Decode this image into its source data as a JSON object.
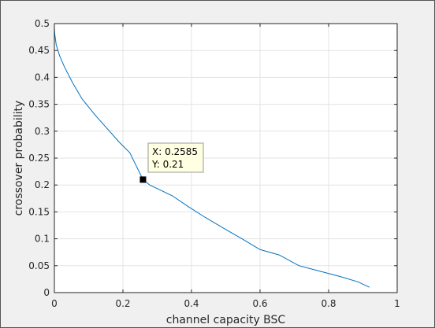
{
  "chart_data": {
    "type": "line",
    "title": "",
    "xlabel": "channel capacity BSC",
    "ylabel": "crossover probability",
    "xlim": [
      0,
      1
    ],
    "ylim": [
      0,
      0.5
    ],
    "xticks": [
      0,
      0.2,
      0.4,
      0.6,
      0.8,
      1
    ],
    "xtick_labels": [
      "0",
      "0.2",
      "0.4",
      "0.6",
      "0.8",
      "1"
    ],
    "yticks": [
      0,
      0.05,
      0.1,
      0.15,
      0.2,
      0.25,
      0.3,
      0.35,
      0.4,
      0.45,
      0.5
    ],
    "ytick_labels": [
      "0",
      "0.05",
      "0.1",
      "0.15",
      "0.2",
      "0.25",
      "0.3",
      "0.35",
      "0.4",
      "0.45",
      "0.5"
    ],
    "grid": true,
    "legend": "none",
    "series": [
      {
        "color": "#0072bd",
        "x": [
          0,
          0.0002,
          0.0012,
          0.0055,
          0.0154,
          0.029,
          0.0532,
          0.0808,
          0.119,
          0.1468,
          0.1887,
          0.22,
          0.2585,
          0.278,
          0.3439,
          0.3902,
          0.4395,
          0.4927,
          0.5472,
          0.5999,
          0.6556,
          0.7136,
          0.7732,
          0.8331,
          0.8856,
          0.9192
        ],
        "y": [
          0.5,
          0.49,
          0.48,
          0.46,
          0.44,
          0.42,
          0.39,
          0.36,
          0.33,
          0.31,
          0.28,
          0.26,
          0.21,
          0.2,
          0.18,
          0.16,
          0.14,
          0.12,
          0.1,
          0.08,
          0.07,
          0.05,
          0.04,
          0.03,
          0.02,
          0.01
        ]
      }
    ],
    "datatip": {
      "x": 0.2585,
      "y": 0.21,
      "x_text": "X: 0.2585",
      "y_text": "Y: 0.21"
    }
  },
  "colors": {
    "axes_background": "#ffffff",
    "figure_background": "#f0f0f0",
    "grid": "#e3e3e3",
    "axis": "#262626",
    "line": "#0072bd",
    "marker": "#000000",
    "datatip_background": "#ffffe1"
  }
}
